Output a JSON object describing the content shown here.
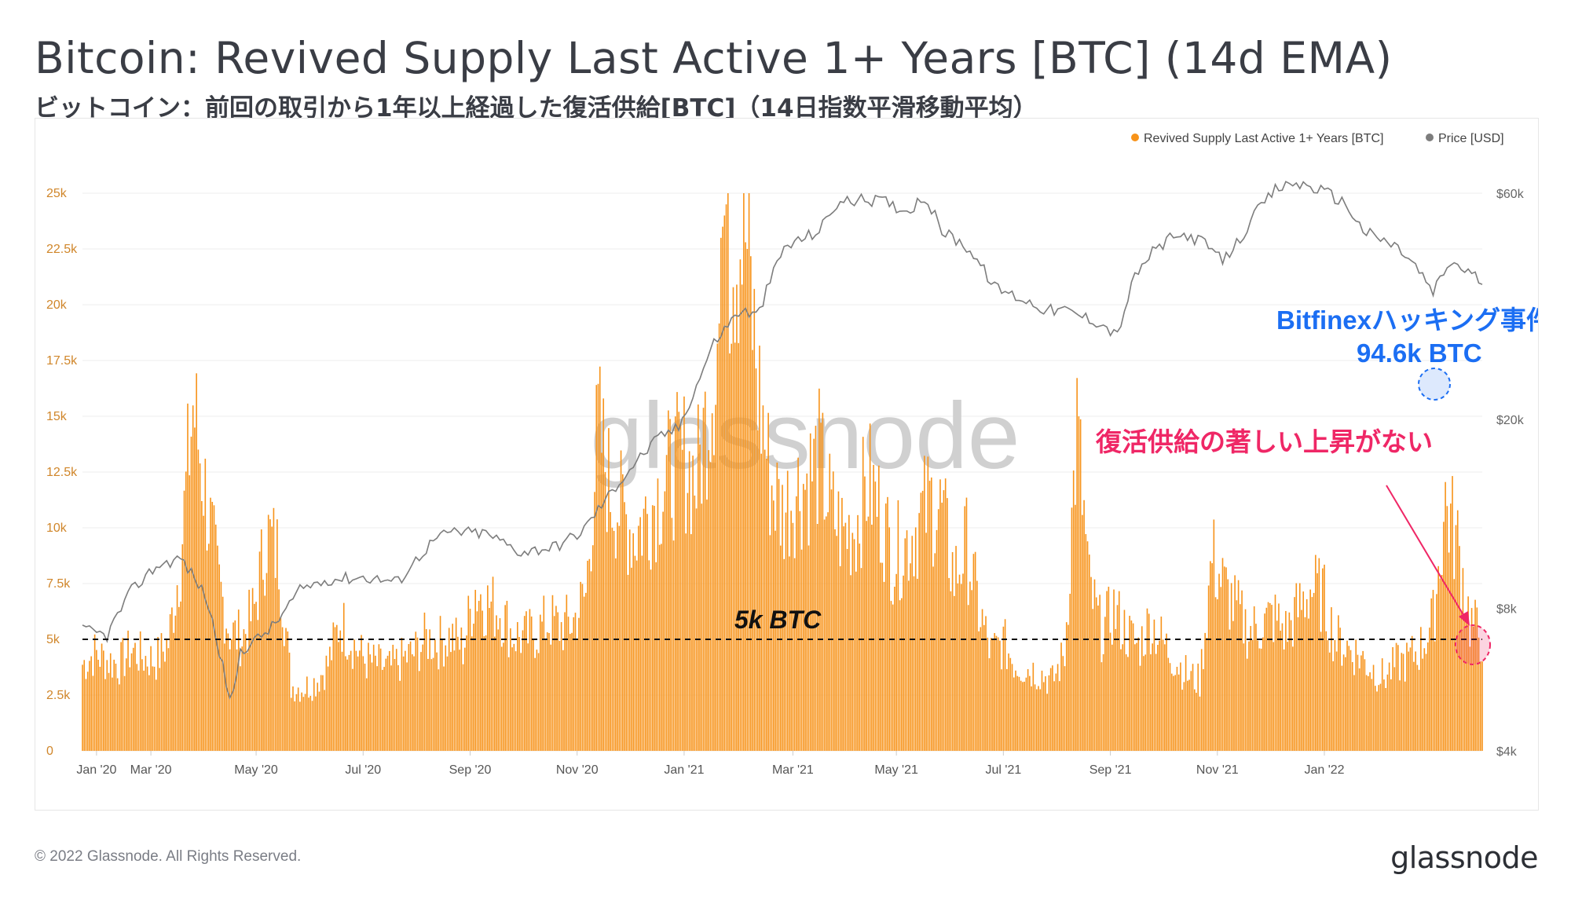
{
  "header": {
    "title": "Bitcoin: Revived Supply Last Active 1+ Years [BTC] (14d EMA)",
    "subtitle_ja": "ビットコイン：前回の取引から1年以上経過した復活供給[BTC]（14日指数平滑移動平均）"
  },
  "footer": {
    "copyright": "© 2022 Glassnode. All Rights Reserved.",
    "logo_text": "glassnode"
  },
  "watermark": "glassnode",
  "colors": {
    "bar": "#f7931a",
    "price_line": "#7d7d7d",
    "annotation_blue": "#1b6ef3",
    "annotation_red": "#ef2766",
    "threshold": "#111111"
  },
  "chart_data": {
    "type": "bar",
    "title": "Bitcoin: Revived Supply Last Active 1+ Years [BTC] (14d EMA)",
    "x_tick_labels": [
      "Jan '20",
      "Mar '20",
      "May '20",
      "Jul '20",
      "Sep '20",
      "Nov '20",
      "Jan '21",
      "Mar '21",
      "May '21",
      "Jul '21",
      "Sep '21",
      "Nov '21",
      "Jan '22"
    ],
    "x_tick_month_index": [
      0,
      2,
      4,
      6,
      8,
      10,
      12,
      14,
      16,
      18,
      20,
      22,
      24
    ],
    "date_range": [
      "2019-12-24",
      "2022-02-28"
    ],
    "ylim_left": [
      0,
      25000
    ],
    "y_left_ticks": [
      {
        "value": 0,
        "label": "0"
      },
      {
        "value": 2500,
        "label": "2.5k"
      },
      {
        "value": 5000,
        "label": "5k"
      },
      {
        "value": 7500,
        "label": "7.5k"
      },
      {
        "value": 10000,
        "label": "10k"
      },
      {
        "value": 12500,
        "label": "12.5k"
      },
      {
        "value": 15000,
        "label": "15k"
      },
      {
        "value": 17500,
        "label": "17.5k"
      },
      {
        "value": 20000,
        "label": "20k"
      },
      {
        "value": 22500,
        "label": "22.5k"
      },
      {
        "value": 25000,
        "label": "25k"
      }
    ],
    "y_right_scale": "log",
    "y_right_ticks": [
      {
        "value": 4000,
        "label": "$4k"
      },
      {
        "value": 8000,
        "label": "$8k"
      },
      {
        "value": 20000,
        "label": "$20k"
      },
      {
        "value": 60000,
        "label": "$60k"
      }
    ],
    "legend": [
      {
        "name": "Revived Supply Last Active 1+ Years [BTC]",
        "color": "#f7931a"
      },
      {
        "name": "Price [USD]",
        "color": "#7d7d7d"
      }
    ],
    "legend_position": "top-right",
    "series": [
      {
        "name": "Revived Supply Last Active 1+ Years [BTC]",
        "axis": "left",
        "kind": "bar",
        "day_offsets": [
          0,
          7,
          14,
          21,
          28,
          35,
          42,
          49,
          56,
          63,
          70,
          77,
          84,
          91,
          98,
          105,
          112,
          119,
          126,
          133,
          140,
          147,
          154,
          161,
          168,
          175,
          182,
          189,
          196,
          203,
          210,
          217,
          224,
          231,
          238,
          245,
          252,
          259,
          266,
          273,
          280,
          287,
          294,
          301,
          308,
          315,
          322,
          329,
          336,
          343,
          350,
          357,
          364,
          371,
          378,
          385,
          392,
          399,
          406,
          413,
          420,
          427,
          434,
          441,
          448,
          455,
          462,
          469,
          476,
          483,
          490,
          497,
          504,
          511,
          518,
          525,
          532,
          539,
          546,
          553,
          560,
          567,
          574,
          581,
          588,
          595,
          602,
          609,
          616,
          623,
          630,
          637,
          644,
          651,
          658,
          665,
          672,
          679,
          686,
          693,
          700,
          707,
          714,
          721,
          728,
          735,
          742,
          749,
          756,
          763,
          770,
          777,
          784,
          791,
          798
        ],
        "values": [
          4000,
          4500,
          4200,
          4000,
          4700,
          4300,
          4200,
          5000,
          9000,
          16000,
          12000,
          8000,
          5500,
          5200,
          6500,
          10000,
          9000,
          3000,
          2900,
          3200,
          4000,
          6000,
          5000,
          4200,
          4000,
          3800,
          4200,
          4500,
          5200,
          5000,
          5300,
          4800,
          7500,
          6800,
          6500,
          5400,
          5200,
          5500,
          6000,
          5700,
          6000,
          7200,
          15000,
          12000,
          11000,
          10000,
          11000,
          12000,
          13000,
          13500,
          12500,
          16000,
          20000,
          23500,
          24000,
          17000,
          12500,
          11000,
          12000,
          12500,
          13500,
          11000,
          10000,
          10500,
          12500,
          11000,
          9000,
          9500,
          10500,
          11500,
          11000,
          8000,
          9500,
          6500,
          4500,
          5000,
          4000,
          3800,
          3600,
          3200,
          4500,
          15000,
          7500,
          5500,
          6500,
          5500,
          4800,
          6000,
          5000,
          4200,
          3500,
          3200,
          9000,
          7500,
          6500,
          5500,
          5800,
          6200,
          5500,
          6500,
          7500,
          7200,
          5200,
          4800,
          4400,
          3800,
          3400,
          4000,
          4200,
          4800,
          6000,
          11500,
          9500,
          6000,
          5200
        ],
        "peak_value": 25000,
        "peak_label": "",
        "annotation_peak": "Bitfinexハッキング事件",
        "annotation_peak_amount": "94.6k BTC"
      },
      {
        "name": "Price [USD]",
        "axis": "right",
        "kind": "line",
        "day_offsets": [
          0,
          14,
          28,
          42,
          56,
          70,
          80,
          85,
          90,
          100,
          110,
          125,
          140,
          160,
          180,
          200,
          210,
          230,
          250,
          270,
          285,
          300,
          315,
          330,
          340,
          350,
          360,
          375,
          385,
          400,
          410,
          420,
          430,
          440,
          455,
          470,
          480,
          490,
          505,
          520,
          535,
          550,
          560,
          570,
          580,
          590,
          600,
          610,
          620,
          630,
          640,
          650,
          660,
          670,
          680,
          690,
          700,
          710,
          720,
          730,
          740,
          750,
          760,
          770,
          780,
          790,
          798
        ],
        "values": [
          7200,
          7000,
          8700,
          9800,
          10200,
          8500,
          6000,
          4900,
          6500,
          6900,
          7400,
          8800,
          9200,
          9300,
          9100,
          11100,
          11600,
          11500,
          10500,
          10800,
          11600,
          13800,
          16200,
          18500,
          19200,
          23500,
          29000,
          34000,
          33000,
          46000,
          48000,
          50000,
          57000,
          58000,
          58000,
          55000,
          59000,
          50000,
          46000,
          38000,
          36000,
          34000,
          34000,
          33000,
          32000,
          30000,
          40000,
          45000,
          48000,
          49000,
          47000,
          43000,
          48000,
          55000,
          61000,
          63000,
          62000,
          60000,
          57000,
          50000,
          48000,
          46000,
          42000,
          37000,
          43000,
          41000,
          39000
        ]
      }
    ],
    "threshold": {
      "value": 5000,
      "label": "5k BTC",
      "style": "dashed"
    },
    "annotations": [
      {
        "text": "Bitfinexハッキング事件",
        "color": "#1b6ef3"
      },
      {
        "text": "94.6k BTC",
        "color": "#1b6ef3"
      },
      {
        "text": "復活供給の著しい上昇がない",
        "color": "#ef2766"
      }
    ]
  }
}
